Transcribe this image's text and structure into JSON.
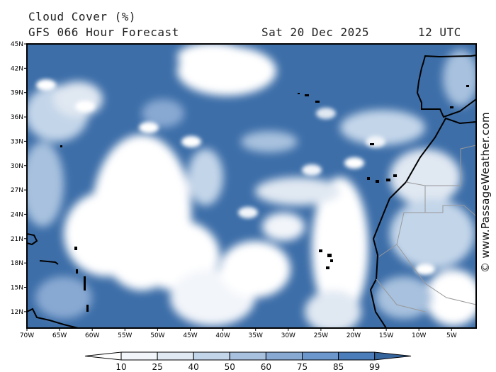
{
  "header": {
    "title": "Cloud Cover (%)",
    "subtitle": "GFS 066 Hour Forecast",
    "date": "Sat 20 Dec 2025",
    "time": "12 UTC"
  },
  "map": {
    "lat_labels": [
      "45N",
      "42N",
      "39N",
      "36N",
      "33N",
      "30N",
      "27N",
      "24N",
      "21N",
      "18N",
      "15N",
      "12N"
    ],
    "lon_labels": [
      "70W",
      "65W",
      "60W",
      "55W",
      "50W",
      "45W",
      "40W",
      "35W",
      "30W",
      "25W",
      "20W",
      "15W",
      "10W",
      "5W"
    ],
    "watermark": "© www.PassageWeather.com"
  },
  "colorbar": {
    "labels": [
      "10",
      "25",
      "40",
      "50",
      "60",
      "75",
      "85",
      "99"
    ],
    "colors": [
      "#ffffff",
      "#f2f5fa",
      "#e0e8f2",
      "#c3d5e9",
      "#a7c1de",
      "#88a9d2",
      "#6b97cc",
      "#4a7dba",
      "#36649d"
    ]
  }
}
